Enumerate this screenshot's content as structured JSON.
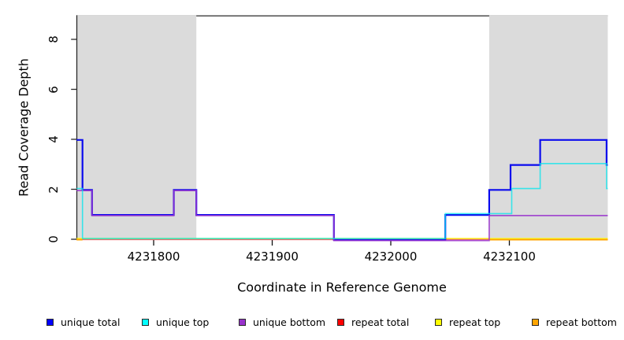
{
  "chart_data": {
    "type": "line",
    "subtype": "step-coverage",
    "title": "",
    "xlabel": "Coordinate in Reference Genome",
    "ylabel": "Read Coverage Depth",
    "xlim": [
      4231735,
      4232183
    ],
    "ylim": [
      0,
      8.95
    ],
    "x_ticks": [
      4231800,
      4231900,
      4232000,
      4232100
    ],
    "y_ticks": [
      0,
      2,
      4,
      6,
      8
    ],
    "grid": false,
    "legend_position": "bottom",
    "plot_background": "#ffffff",
    "repeat_region_color": "#dbdbdb",
    "top_border_color": "#5a5a5a",
    "axis_color": "#2a2a2a",
    "repeat_regions": [
      [
        4231735,
        4231836
      ],
      [
        4232083,
        4232183
      ]
    ],
    "series": [
      {
        "name": "unique total",
        "color": "#0b0bee",
        "legend_color": "#0000ff",
        "segments": [
          {
            "steps": [
              [
                4231735,
                4
              ],
              [
                4231740,
                2
              ],
              [
                4231748,
                1
              ],
              [
                4231817,
                2
              ],
              [
                4231836,
                1
              ],
              [
                4231952,
                0
              ],
              [
                4232046,
                1
              ],
              [
                4232083,
                2
              ],
              [
                4232101,
                3
              ],
              [
                4232126,
                4
              ],
              [
                4232182,
                3
              ]
            ],
            "end": 4232183
          }
        ]
      },
      {
        "name": "unique top",
        "color": "#00e6ee",
        "legend_color": "#00ffff",
        "segments": [
          {
            "steps": [
              [
                4231735,
                2
              ],
              [
                4231740,
                0
              ],
              [
                4232046,
                1
              ],
              [
                4232102,
                2
              ],
              [
                4232126,
                3
              ],
              [
                4232182,
                2
              ]
            ],
            "end": 4232183
          }
        ]
      },
      {
        "name": "unique bottom",
        "color": "#9932cc",
        "legend_color": "#9932cc",
        "segments": [
          {
            "steps": [
              [
                4231735,
                2
              ],
              [
                4231748,
                1
              ],
              [
                4231817,
                2
              ],
              [
                4231836,
                1
              ],
              [
                4231952,
                0
              ],
              [
                4232083,
                1
              ]
            ],
            "end": 4232183
          }
        ]
      },
      {
        "name": "repeat total",
        "color": "#e02020",
        "legend_color": "#ff0000",
        "segments": [
          {
            "steps": [
              [
                4231735,
                0
              ]
            ],
            "end": 4232183
          }
        ]
      },
      {
        "name": "repeat top",
        "color": "#ffff00",
        "legend_color": "#ffff00",
        "segments": [
          {
            "steps": [
              [
                4231735,
                0
              ]
            ],
            "end": 4232183
          }
        ]
      },
      {
        "name": "repeat bottom",
        "color": "#ffa500",
        "legend_color": "#ffa500",
        "segments": [
          {
            "steps": [
              [
                4231735,
                0
              ]
            ],
            "end": 4231740
          },
          {
            "steps": [
              [
                4232083,
                0
              ]
            ],
            "end": 4232183
          }
        ]
      }
    ]
  },
  "legend": {
    "items": [
      {
        "label": "unique total",
        "color": "#0000ff"
      },
      {
        "label": "unique top",
        "color": "#00ffff"
      },
      {
        "label": "unique bottom",
        "color": "#9932cc"
      },
      {
        "label": "repeat total",
        "color": "#ff0000"
      },
      {
        "label": "repeat top",
        "color": "#ffff00"
      },
      {
        "label": "repeat bottom",
        "color": "#ffa500"
      }
    ]
  }
}
